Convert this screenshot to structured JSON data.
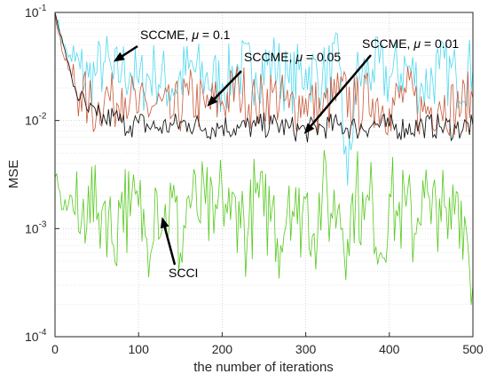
{
  "chart_data": {
    "type": "line",
    "xlabel": "the number of iterations",
    "ylabel": "MSE",
    "xlim": [
      0,
      500
    ],
    "ylim": [
      0.0001,
      0.1
    ],
    "yscale": "log",
    "grid": true,
    "x_ticks": [
      {
        "value": 0,
        "label": "0"
      },
      {
        "value": 100,
        "label": "100"
      },
      {
        "value": 200,
        "label": "200"
      },
      {
        "value": 300,
        "label": "300"
      },
      {
        "value": 400,
        "label": "400"
      },
      {
        "value": 500,
        "label": "500"
      }
    ],
    "y_ticks": [
      {
        "value": 0.1,
        "base": "10",
        "exp": "-1"
      },
      {
        "value": 0.01,
        "base": "10",
        "exp": "-2"
      },
      {
        "value": 0.001,
        "base": "10",
        "exp": "-3"
      },
      {
        "value": 0.0001,
        "base": "10",
        "exp": "-4"
      }
    ],
    "series": [
      {
        "key": "mu_0_1",
        "color": "#4dd9f0",
        "x": [
          0,
          10,
          20,
          30,
          40,
          50,
          60,
          70,
          80,
          90,
          100,
          120,
          140,
          160,
          180,
          200,
          220,
          240,
          260,
          280,
          300,
          320,
          340,
          350,
          360,
          380,
          400,
          420,
          440,
          460,
          480,
          500
        ],
        "values": [
          0.1,
          0.05,
          0.035,
          0.03,
          0.025,
          0.028,
          0.035,
          0.024,
          0.03,
          0.028,
          0.022,
          0.028,
          0.02,
          0.03,
          0.025,
          0.022,
          0.03,
          0.028,
          0.035,
          0.022,
          0.03,
          0.025,
          0.033,
          0.0025,
          0.024,
          0.03,
          0.025,
          0.032,
          0.02,
          0.03,
          0.025,
          0.03
        ]
      },
      {
        "key": "mu_0_05",
        "color": "#c85a3c",
        "x": [
          0,
          10,
          20,
          30,
          40,
          50,
          60,
          70,
          80,
          90,
          100,
          120,
          140,
          160,
          180,
          200,
          220,
          240,
          260,
          280,
          300,
          320,
          340,
          360,
          380,
          400,
          420,
          440,
          460,
          480,
          500
        ],
        "values": [
          0.1,
          0.04,
          0.025,
          0.018,
          0.014,
          0.012,
          0.018,
          0.014,
          0.02,
          0.016,
          0.012,
          0.014,
          0.011,
          0.017,
          0.013,
          0.015,
          0.02,
          0.014,
          0.018,
          0.013,
          0.016,
          0.012,
          0.018,
          0.014,
          0.016,
          0.013,
          0.018,
          0.012,
          0.015,
          0.013,
          0.016
        ]
      },
      {
        "key": "mu_0_01",
        "color": "#1a1a1a",
        "x": [
          0,
          10,
          20,
          30,
          40,
          50,
          60,
          70,
          80,
          90,
          100,
          120,
          140,
          160,
          180,
          200,
          220,
          240,
          260,
          280,
          300,
          320,
          340,
          360,
          380,
          400,
          420,
          440,
          460,
          480,
          500
        ],
        "values": [
          0.1,
          0.05,
          0.025,
          0.016,
          0.012,
          0.011,
          0.01,
          0.011,
          0.0095,
          0.009,
          0.0095,
          0.0085,
          0.009,
          0.0095,
          0.0085,
          0.009,
          0.0085,
          0.0088,
          0.0092,
          0.0085,
          0.008,
          0.0088,
          0.009,
          0.0085,
          0.0092,
          0.0088,
          0.0085,
          0.009,
          0.0088,
          0.0085,
          0.009
        ]
      },
      {
        "key": "scci",
        "color": "#56c91e",
        "x": [
          0,
          10,
          20,
          30,
          40,
          50,
          60,
          70,
          80,
          90,
          100,
          110,
          120,
          130,
          140,
          150,
          160,
          170,
          180,
          190,
          200,
          210,
          220,
          230,
          240,
          250,
          260,
          270,
          280,
          290,
          300,
          310,
          320,
          330,
          340,
          350,
          360,
          370,
          380,
          390,
          400,
          410,
          420,
          430,
          440,
          450,
          460,
          470,
          480,
          490,
          500
        ],
        "values": [
          0.003,
          0.0015,
          0.002,
          0.0009,
          0.0025,
          0.0012,
          0.0018,
          0.0007,
          0.0022,
          0.0013,
          0.0016,
          0.0008,
          0.0024,
          0.0011,
          0.0019,
          0.0006,
          0.002,
          0.0014,
          0.0017,
          0.0009,
          0.0023,
          0.0012,
          0.0018,
          0.0008,
          0.0021,
          0.0013,
          0.0016,
          0.0007,
          0.0025,
          0.0011,
          0.0019,
          0.0009,
          0.0022,
          0.0014,
          0.0017,
          0.0008,
          0.0024,
          0.0012,
          0.0018,
          0.0006,
          0.0021,
          0.0013,
          0.0016,
          0.0009,
          0.0028,
          0.0011,
          0.0019,
          0.0008,
          0.0022,
          0.0013,
          0.0003
        ]
      }
    ],
    "annotations": [
      {
        "key": "ann1",
        "text": "SCCME, ",
        "mu": "μ",
        "rest": " = 0.1",
        "tx": 70,
        "ty": 0.035
      },
      {
        "key": "ann2",
        "text": "SCCME, ",
        "mu": "μ",
        "rest": " = 0.05",
        "tx": 182,
        "ty": 0.0135
      },
      {
        "key": "ann3",
        "text": "SCCME, ",
        "mu": "μ",
        "rest": " = 0.01",
        "tx": 298,
        "ty": 0.0075
      },
      {
        "key": "ann4",
        "text": "SCCI",
        "mu": "",
        "rest": "",
        "tx": 128,
        "ty": 0.00128
      }
    ]
  }
}
